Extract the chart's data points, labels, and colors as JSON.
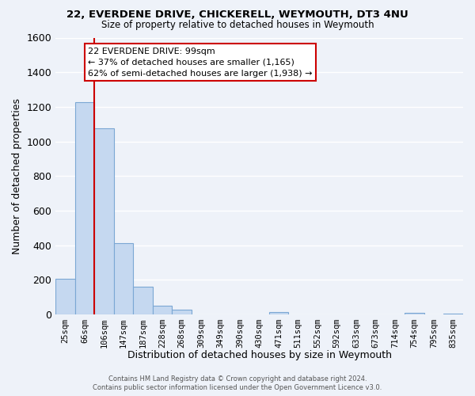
{
  "title": "22, EVERDENE DRIVE, CHICKERELL, WEYMOUTH, DT3 4NU",
  "subtitle": "Size of property relative to detached houses in Weymouth",
  "xlabel": "Distribution of detached houses by size in Weymouth",
  "ylabel": "Number of detached properties",
  "footer_line1": "Contains HM Land Registry data © Crown copyright and database right 2024.",
  "footer_line2": "Contains public sector information licensed under the Open Government Licence v3.0.",
  "bins": [
    "25sqm",
    "66sqm",
    "106sqm",
    "147sqm",
    "187sqm",
    "228sqm",
    "268sqm",
    "309sqm",
    "349sqm",
    "390sqm",
    "430sqm",
    "471sqm",
    "511sqm",
    "552sqm",
    "592sqm",
    "633sqm",
    "673sqm",
    "714sqm",
    "754sqm",
    "795sqm",
    "835sqm"
  ],
  "bar_values": [
    205,
    1225,
    1075,
    410,
    160,
    50,
    25,
    0,
    0,
    0,
    0,
    15,
    0,
    0,
    0,
    0,
    0,
    0,
    10,
    0,
    5
  ],
  "bar_color": "#c5d8f0",
  "bar_edge_color": "#7ba7d4",
  "annotation_title": "22 EVERDENE DRIVE: 99sqm",
  "annotation_line2": "← 37% of detached houses are smaller (1,165)",
  "annotation_line3": "62% of semi-detached houses are larger (1,938) →",
  "ylim": [
    0,
    1600
  ],
  "yticks": [
    0,
    200,
    400,
    600,
    800,
    1000,
    1200,
    1400,
    1600
  ],
  "bg_color": "#eef2f9",
  "plot_bg_color": "#eef2f9",
  "grid_color": "#ffffff",
  "red_line_color": "#cc0000",
  "property_line_x": 1.5
}
